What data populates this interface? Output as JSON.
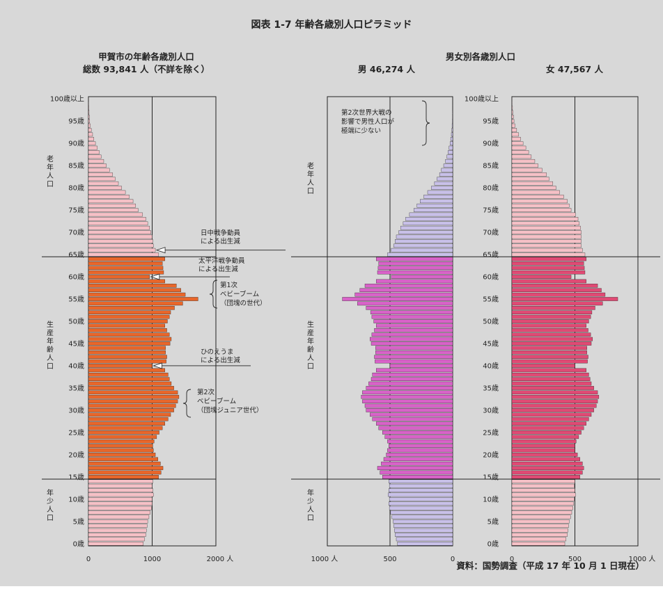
{
  "chart_data": [
    {
      "type": "bar",
      "title": "甲賀市の年齢各歳別人口",
      "subtitle": "総数 93,841 人（不詳を除く）",
      "orientation": "horizontal",
      "x_ticks": [
        "0",
        "1000",
        "2000 人"
      ],
      "xlim": [
        0,
        2000
      ],
      "y_ticks": [
        "0歳",
        "5歳",
        "10歳",
        "15歳",
        "20歳",
        "25歳",
        "30歳",
        "35歳",
        "40歳",
        "45歳",
        "50歳",
        "55歳",
        "60歳",
        "65歳",
        "70歳",
        "75歳",
        "80歳",
        "85歳",
        "90歳",
        "95歳",
        "100歳以上"
      ],
      "age_groups": [
        "老年人口",
        "生産年齢人口",
        "年少人口"
      ],
      "ages": [
        0,
        1,
        2,
        3,
        4,
        5,
        6,
        7,
        8,
        9,
        10,
        11,
        12,
        13,
        14,
        15,
        16,
        17,
        18,
        19,
        20,
        21,
        22,
        23,
        24,
        25,
        26,
        27,
        28,
        29,
        30,
        31,
        32,
        33,
        34,
        35,
        36,
        37,
        38,
        39,
        40,
        41,
        42,
        43,
        44,
        45,
        46,
        47,
        48,
        49,
        50,
        51,
        52,
        53,
        54,
        55,
        56,
        57,
        58,
        59,
        60,
        61,
        62,
        63,
        64,
        65,
        66,
        67,
        68,
        69,
        70,
        71,
        72,
        73,
        74,
        75,
        76,
        77,
        78,
        79,
        80,
        81,
        82,
        83,
        84,
        85,
        86,
        87,
        88,
        89,
        90,
        91,
        92,
        93,
        94,
        95,
        96,
        97,
        98,
        99,
        100
      ],
      "values": [
        860,
        880,
        900,
        910,
        920,
        930,
        950,
        970,
        990,
        1000,
        1000,
        1020,
        1010,
        1000,
        1010,
        1100,
        1140,
        1170,
        1130,
        1090,
        1050,
        1020,
        1010,
        1030,
        1070,
        1110,
        1160,
        1200,
        1250,
        1290,
        1340,
        1370,
        1400,
        1420,
        1400,
        1340,
        1300,
        1270,
        1250,
        1200,
        1000,
        1220,
        1230,
        1210,
        1210,
        1280,
        1300,
        1270,
        1230,
        1200,
        1240,
        1270,
        1290,
        1350,
        1480,
        1720,
        1520,
        1450,
        1380,
        1200,
        960,
        1180,
        1170,
        1160,
        1200,
        1100,
        1050,
        1020,
        1010,
        1000,
        980,
        960,
        930,
        900,
        850,
        780,
        740,
        700,
        640,
        580,
        520,
        470,
        420,
        380,
        330,
        280,
        240,
        200,
        170,
        140,
        110,
        85,
        65,
        45,
        30,
        20,
        15,
        10,
        6,
        3,
        2
      ],
      "annotations": [
        "日中戦争動員による出生減",
        "太平洋戦争動員による出生減",
        "第1次ベビーブーム（団塊の世代）",
        "ひのえうまによる出生減",
        "第2次ベビーブーム（団塊ジュニア世代）"
      ]
    },
    {
      "type": "bar",
      "title": "男女別各歳別人口",
      "orientation": "horizontal",
      "legend": [
        "男 46,274 人",
        "女 47,567 人"
      ],
      "x_ticks_male": [
        "1000 人",
        "500",
        "0"
      ],
      "x_ticks_female": [
        "0",
        "500",
        "1000 人"
      ],
      "xlim": [
        0,
        1000
      ],
      "y_ticks": [
        "0歳",
        "5歳",
        "10歳",
        "15歳",
        "20歳",
        "25歳",
        "30歳",
        "35歳",
        "40歳",
        "45歳",
        "50歳",
        "55歳",
        "60歳",
        "65歳",
        "70歳",
        "75歳",
        "80歳",
        "85歳",
        "90歳",
        "95歳",
        "100歳以上"
      ],
      "age_groups": [
        "老年人口",
        "生産年齢人口",
        "年少人口"
      ],
      "ages": [
        0,
        1,
        2,
        3,
        4,
        5,
        6,
        7,
        8,
        9,
        10,
        11,
        12,
        13,
        14,
        15,
        16,
        17,
        18,
        19,
        20,
        21,
        22,
        23,
        24,
        25,
        26,
        27,
        28,
        29,
        30,
        31,
        32,
        33,
        34,
        35,
        36,
        37,
        38,
        39,
        40,
        41,
        42,
        43,
        44,
        45,
        46,
        47,
        48,
        49,
        50,
        51,
        52,
        53,
        54,
        55,
        56,
        57,
        58,
        59,
        60,
        61,
        62,
        63,
        64,
        65,
        66,
        67,
        68,
        69,
        70,
        71,
        72,
        73,
        74,
        75,
        76,
        77,
        78,
        79,
        80,
        81,
        82,
        83,
        84,
        85,
        86,
        87,
        88,
        89,
        90,
        91,
        92,
        93,
        94,
        95,
        96,
        97,
        98,
        99,
        100
      ],
      "series": [
        {
          "name": "男 46,274 人",
          "values": [
            440,
            450,
            460,
            465,
            470,
            475,
            485,
            495,
            505,
            510,
            505,
            515,
            510,
            505,
            510,
            560,
            580,
            600,
            570,
            550,
            530,
            520,
            510,
            520,
            540,
            560,
            590,
            610,
            640,
            660,
            690,
            700,
            720,
            730,
            720,
            690,
            670,
            650,
            640,
            610,
            500,
            620,
            625,
            615,
            615,
            650,
            660,
            645,
            625,
            610,
            630,
            645,
            655,
            690,
            760,
            880,
            780,
            740,
            700,
            610,
            490,
            600,
            595,
            590,
            610,
            520,
            490,
            470,
            460,
            450,
            430,
            415,
            395,
            375,
            345,
            310,
            285,
            260,
            230,
            200,
            170,
            145,
            125,
            105,
            90,
            72,
            58,
            46,
            37,
            29,
            21,
            16,
            11,
            7,
            5,
            3,
            2,
            2,
            1,
            1,
            1
          ]
        },
        {
          "name": "女 47,567 人",
          "values": [
            420,
            430,
            440,
            445,
            450,
            455,
            465,
            475,
            485,
            490,
            495,
            505,
            500,
            495,
            500,
            540,
            560,
            570,
            560,
            540,
            520,
            500,
            500,
            510,
            530,
            550,
            570,
            590,
            610,
            630,
            650,
            670,
            680,
            690,
            680,
            650,
            630,
            620,
            610,
            590,
            500,
            600,
            605,
            595,
            595,
            630,
            640,
            625,
            605,
            590,
            610,
            625,
            635,
            660,
            720,
            840,
            740,
            710,
            680,
            590,
            470,
            580,
            575,
            570,
            590,
            580,
            560,
            550,
            550,
            550,
            550,
            545,
            535,
            525,
            505,
            470,
            455,
            440,
            410,
            380,
            350,
            325,
            295,
            275,
            240,
            208,
            182,
            154,
            133,
            111,
            89,
            69,
            54,
            38,
            25,
            17,
            13,
            8,
            5,
            2,
            1
          ]
        }
      ],
      "annotations": [
        "第2次世界大戦の影響で男性人口が極端に少ない"
      ]
    }
  ],
  "figure_title": "図表 1-7  年齢各歳別人口ピラミッド",
  "source": "資料：国勢調査（平成 17 年 10 月 1 日現在）",
  "colors": {
    "background": "#d8d8d8",
    "elderly_young_total": "#f5c0c6",
    "working_total": "#e8662a",
    "elderly_young_male": "#c8c0e8",
    "working_male": "#d862c8",
    "elderly_young_female": "#f5c0c6",
    "working_female": "#e04a74"
  }
}
